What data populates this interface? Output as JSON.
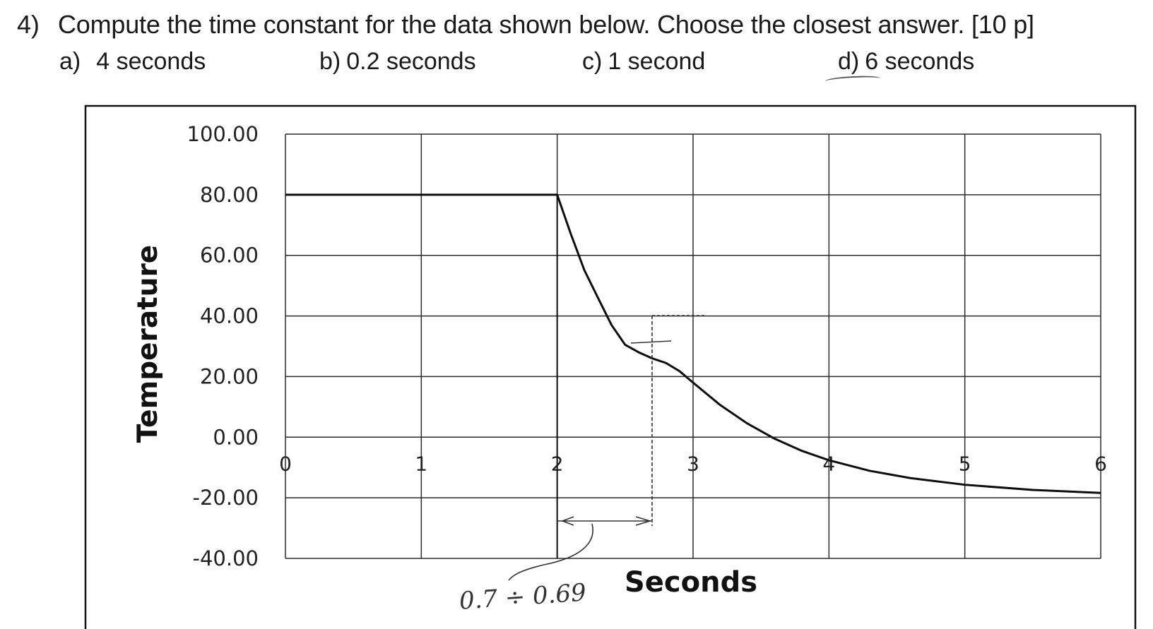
{
  "question": {
    "number": "4)",
    "text": "Compute the time constant for the data shown below. Choose the closest answer. [10 p]"
  },
  "choices": [
    {
      "letter": "a)",
      "text": "4 seconds"
    },
    {
      "letter": "b)",
      "text": "0.2 seconds"
    },
    {
      "letter": "c)",
      "text": "1 second"
    },
    {
      "letter": "d)",
      "text": "6 seconds"
    }
  ],
  "annotation": {
    "handwritten_note": "0.7 ÷ 0.69"
  },
  "chart_data": {
    "type": "line",
    "title": "",
    "xlabel": "Seconds",
    "ylabel": "Temperature",
    "xlim": [
      0,
      6
    ],
    "ylim": [
      -40,
      100
    ],
    "x_ticks": [
      "0",
      "1",
      "2",
      "3",
      "4",
      "5",
      "6"
    ],
    "y_ticks": [
      "100.00",
      "80.00",
      "60.00",
      "40.00",
      "20.00",
      "0.00",
      "-20.00",
      "-40.00"
    ],
    "grid": true,
    "series": [
      {
        "x": [
          0,
          2,
          2.1,
          2.2,
          2.3,
          2.4,
          2.5,
          2.6,
          2.7,
          2.8,
          2.9,
          3.0,
          3.2,
          3.4,
          3.6,
          3.8,
          4.0,
          4.3,
          4.6,
          5.0,
          5.5,
          6.0
        ],
        "y": [
          80,
          80,
          67.1,
          55.1,
          46.0,
          37.0,
          30.5,
          28.0,
          26.0,
          24.5,
          21.8,
          18.0,
          10.6,
          4.5,
          -0.5,
          -4.5,
          -7.6,
          -11.1,
          -13.5,
          -15.7,
          -17.4,
          -18.4
        ]
      }
    ]
  }
}
